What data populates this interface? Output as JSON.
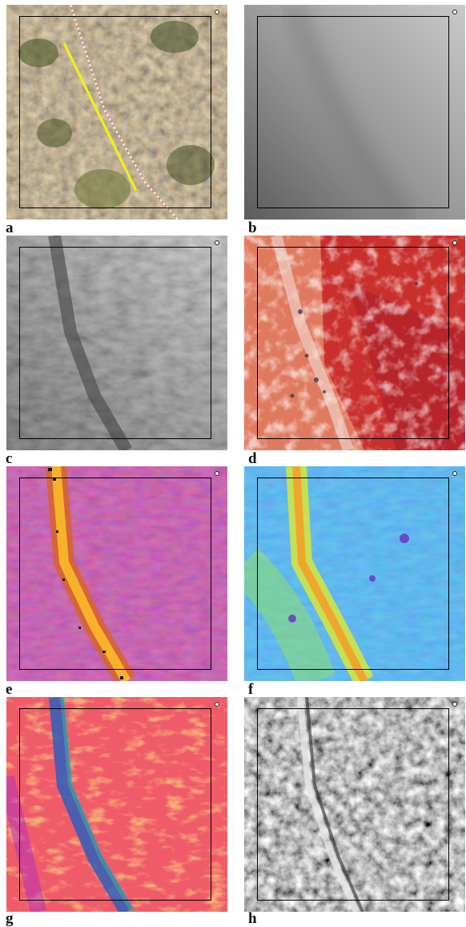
{
  "panels": [
    {
      "letter": "a"
    },
    {
      "letter": "b"
    },
    {
      "letter": "c"
    },
    {
      "letter": "d"
    },
    {
      "letter": "e"
    },
    {
      "letter": "f"
    },
    {
      "letter": "g"
    },
    {
      "letter": "h"
    }
  ]
}
